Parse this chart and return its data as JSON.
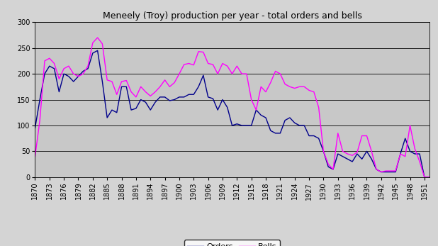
{
  "title": "Meneely (Troy) production per year - total orders and bells",
  "years": [
    1870,
    1871,
    1872,
    1873,
    1874,
    1875,
    1876,
    1877,
    1878,
    1879,
    1880,
    1881,
    1882,
    1883,
    1884,
    1885,
    1886,
    1887,
    1888,
    1889,
    1890,
    1891,
    1892,
    1893,
    1894,
    1895,
    1896,
    1897,
    1898,
    1899,
    1900,
    1901,
    1902,
    1903,
    1904,
    1905,
    1906,
    1907,
    1908,
    1909,
    1910,
    1911,
    1912,
    1913,
    1914,
    1915,
    1916,
    1917,
    1918,
    1919,
    1920,
    1921,
    1922,
    1923,
    1924,
    1925,
    1926,
    1927,
    1928,
    1929,
    1930,
    1931,
    1932,
    1933,
    1934,
    1935,
    1936,
    1937,
    1938,
    1939,
    1940,
    1941,
    1942,
    1943,
    1944,
    1945,
    1946,
    1947,
    1948,
    1949,
    1950,
    1951,
    1952
  ],
  "orders": [
    95,
    150,
    200,
    215,
    210,
    165,
    200,
    195,
    185,
    195,
    205,
    210,
    240,
    245,
    185,
    115,
    130,
    125,
    175,
    175,
    130,
    133,
    150,
    145,
    130,
    145,
    155,
    155,
    148,
    150,
    155,
    155,
    160,
    160,
    175,
    197,
    155,
    152,
    130,
    150,
    135,
    100,
    103,
    100,
    100,
    100,
    130,
    120,
    115,
    90,
    85,
    85,
    110,
    115,
    105,
    100,
    100,
    80,
    80,
    75,
    50,
    20,
    15,
    45,
    40,
    35,
    30,
    45,
    35,
    50,
    35,
    15,
    10,
    10,
    10,
    10,
    45,
    75,
    50,
    45,
    45,
    0,
    0
  ],
  "bells": [
    40,
    110,
    225,
    230,
    220,
    190,
    210,
    215,
    200,
    195,
    200,
    215,
    260,
    270,
    258,
    188,
    185,
    160,
    185,
    187,
    165,
    155,
    175,
    165,
    157,
    165,
    175,
    188,
    175,
    183,
    200,
    218,
    220,
    217,
    243,
    242,
    220,
    218,
    200,
    220,
    215,
    200,
    215,
    200,
    200,
    150,
    130,
    175,
    165,
    183,
    205,
    200,
    180,
    175,
    172,
    175,
    175,
    168,
    165,
    135,
    50,
    25,
    15,
    85,
    50,
    45,
    42,
    48,
    80,
    80,
    50,
    15,
    10,
    12,
    12,
    12,
    45,
    40,
    100,
    55,
    30,
    0,
    0
  ],
  "orders_color": "#00008B",
  "bells_color": "#FF00FF",
  "fig_facecolor": "#D4D4D4",
  "plot_facecolor": "#C8C8C8",
  "ylim": [
    0,
    300
  ],
  "yticks": [
    0,
    50,
    100,
    150,
    200,
    250,
    300
  ],
  "xtick_years": [
    1870,
    1873,
    1876,
    1879,
    1882,
    1885,
    1888,
    1891,
    1894,
    1897,
    1900,
    1903,
    1906,
    1909,
    1912,
    1915,
    1918,
    1921,
    1924,
    1927,
    1930,
    1933,
    1936,
    1939,
    1942,
    1945,
    1948,
    1951
  ],
  "legend_labels": [
    "Orders",
    "Bells"
  ],
  "title_fontsize": 9,
  "tick_fontsize": 7,
  "legend_fontsize": 8
}
